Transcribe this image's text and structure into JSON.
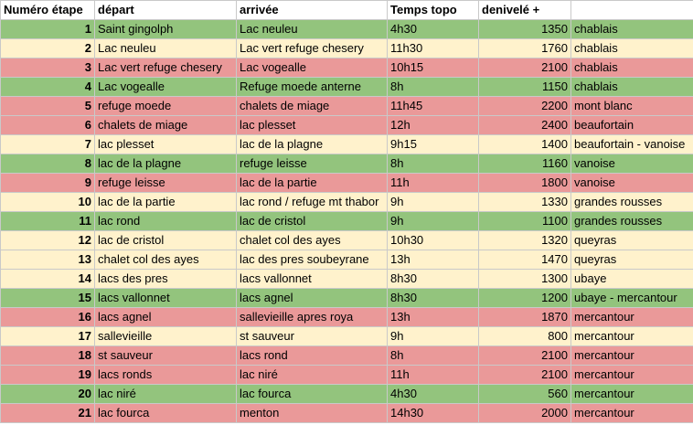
{
  "colors": {
    "green": "#93c47d",
    "red": "#ea9999",
    "yellow": "#fff2cc"
  },
  "headers": {
    "num": "Numéro étape",
    "depart": "départ",
    "arrivee": "arrivée",
    "temps": "Temps topo",
    "denivele": "denivelé +",
    "region": ""
  },
  "rows": [
    {
      "num": "1",
      "depart": "Saint gingolph",
      "arrivee": "Lac neuleu",
      "temps": "4h30",
      "denivele": "1350",
      "region": "chablais",
      "color": "green"
    },
    {
      "num": "2",
      "depart": "Lac neuleu",
      "arrivee": "Lac vert refuge chesery",
      "temps": "11h30",
      "denivele": "1760",
      "region": "chablais",
      "color": "yellow"
    },
    {
      "num": "3",
      "depart": "Lac vert refuge chesery",
      "arrivee": "Lac vogealle",
      "temps": "10h15",
      "denivele": "2100",
      "region": "chablais",
      "color": "red"
    },
    {
      "num": "4",
      "depart": "Lac vogealle",
      "arrivee": "Refuge moede anterne",
      "temps": "8h",
      "denivele": "1150",
      "region": "chablais",
      "color": "green"
    },
    {
      "num": "5",
      "depart": "refuge moede",
      "arrivee": "chalets de miage",
      "temps": "11h45",
      "denivele": "2200",
      "region": "mont blanc",
      "color": "red"
    },
    {
      "num": "6",
      "depart": "chalets de miage",
      "arrivee": "lac plesset",
      "temps": "12h",
      "denivele": "2400",
      "region": "beaufortain",
      "color": "red"
    },
    {
      "num": "7",
      "depart": "lac plesset",
      "arrivee": "lac de la plagne",
      "temps": "9h15",
      "denivele": "1400",
      "region": "beaufortain - vanoise",
      "color": "yellow"
    },
    {
      "num": "8",
      "depart": "lac de la plagne",
      "arrivee": "refuge leisse",
      "temps": "8h",
      "denivele": "1160",
      "region": "vanoise",
      "color": "green"
    },
    {
      "num": "9",
      "depart": "refuge leisse",
      "arrivee": "lac de la partie",
      "temps": "11h",
      "denivele": "1800",
      "region": "vanoise",
      "color": "red"
    },
    {
      "num": "10",
      "depart": "lac de la partie",
      "arrivee": "lac rond / refuge mt thabor",
      "temps": "9h",
      "denivele": "1330",
      "region": "grandes rousses",
      "color": "yellow"
    },
    {
      "num": "11",
      "depart": "lac rond",
      "arrivee": "lac de cristol",
      "temps": "9h",
      "denivele": "1100",
      "region": "grandes rousses",
      "color": "green"
    },
    {
      "num": "12",
      "depart": "lac de cristol",
      "arrivee": "chalet col des ayes",
      "temps": "10h30",
      "denivele": "1320",
      "region": "queyras",
      "color": "yellow"
    },
    {
      "num": "13",
      "depart": "chalet col des ayes",
      "arrivee": "lac des pres soubeyrane",
      "temps": "13h",
      "denivele": "1470",
      "region": "queyras",
      "color": "yellow"
    },
    {
      "num": "14",
      "depart": "lacs des pres",
      "arrivee": "lacs vallonnet",
      "temps": "8h30",
      "denivele": "1300",
      "region": "ubaye",
      "color": "yellow"
    },
    {
      "num": "15",
      "depart": "lacs vallonnet",
      "arrivee": "lacs agnel",
      "temps": "8h30",
      "denivele": "1200",
      "region": "ubaye - mercantour",
      "color": "green"
    },
    {
      "num": "16",
      "depart": "lacs agnel",
      "arrivee": "sallevieille apres roya",
      "temps": "13h",
      "denivele": "1870",
      "region": "mercantour",
      "color": "red"
    },
    {
      "num": "17",
      "depart": "sallevieille",
      "arrivee": "st sauveur",
      "temps": "9h",
      "denivele": "800",
      "region": "mercantour",
      "color": "yellow"
    },
    {
      "num": "18",
      "depart": "st sauveur",
      "arrivee": "lacs rond",
      "temps": "8h",
      "denivele": "2100",
      "region": "mercantour",
      "color": "red"
    },
    {
      "num": "19",
      "depart": "lacs ronds",
      "arrivee": "lac niré",
      "temps": "11h",
      "denivele": "2100",
      "region": "mercantour",
      "color": "red"
    },
    {
      "num": "20",
      "depart": "lac niré",
      "arrivee": "lac fourca",
      "temps": "4h30",
      "denivele": "560",
      "region": "mercantour",
      "color": "green"
    },
    {
      "num": "21",
      "depart": "lac fourca",
      "arrivee": "menton",
      "temps": "14h30",
      "denivele": "2000",
      "region": "mercantour",
      "color": "red"
    }
  ]
}
